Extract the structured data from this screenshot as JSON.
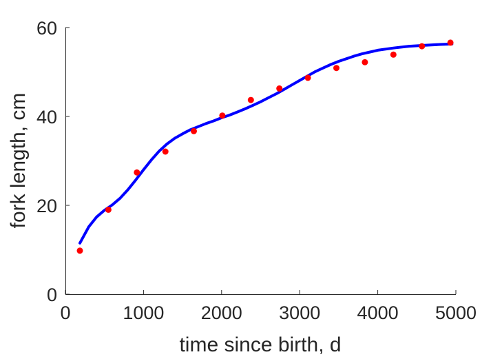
{
  "chart_data": {
    "type": "scatter",
    "title": "",
    "xlabel": "time since birth, d",
    "ylabel": "fork length, cm",
    "xlim": [
      0,
      5000
    ],
    "ylim": [
      0,
      60
    ],
    "xticks": [
      0,
      1000,
      2000,
      3000,
      4000,
      5000
    ],
    "yticks": [
      0,
      20,
      40,
      60
    ],
    "xtick_labels": [
      "0",
      "1000",
      "2000",
      "3000",
      "4000",
      "5000"
    ],
    "ytick_labels": [
      "0",
      "20",
      "40",
      "60"
    ],
    "grid": false,
    "legend": "none",
    "series": [
      {
        "type": "scatter",
        "color": "#ff0000",
        "x": [
          185,
          550,
          915,
          1280,
          1645,
          2010,
          2375,
          2740,
          3105,
          3470,
          3835,
          4200,
          4565,
          4930
        ],
        "y": [
          9.8,
          19.0,
          27.4,
          32.1,
          36.7,
          40.2,
          43.7,
          46.3,
          48.7,
          50.9,
          52.2,
          53.9,
          55.8,
          56.6
        ]
      },
      {
        "type": "line",
        "color": "#0000ff",
        "x": [
          185,
          300,
          400,
          500,
          600,
          700,
          800,
          900,
          1000,
          1100,
          1200,
          1300,
          1400,
          1500,
          1600,
          1700,
          1800,
          1900,
          2000,
          2100,
          2200,
          2300,
          2400,
          2500,
          2600,
          2700,
          2800,
          2900,
          3000,
          3100,
          3200,
          3300,
          3400,
          3500,
          3600,
          3700,
          3800,
          3900,
          4000,
          4200,
          4400,
          4600,
          4800,
          4950
        ],
        "y": [
          11.5,
          15.2,
          17.4,
          18.9,
          20.1,
          21.6,
          23.5,
          25.7,
          28.0,
          30.2,
          32.2,
          33.8,
          35.1,
          36.1,
          37.0,
          37.7,
          38.4,
          39.0,
          39.7,
          40.3,
          41.0,
          41.7,
          42.5,
          43.3,
          44.2,
          45.1,
          46.1,
          47.1,
          48.1,
          49.1,
          50.1,
          50.9,
          51.7,
          52.4,
          53.0,
          53.6,
          54.1,
          54.5,
          54.9,
          55.4,
          55.8,
          56.0,
          56.2,
          56.3
        ]
      }
    ]
  }
}
